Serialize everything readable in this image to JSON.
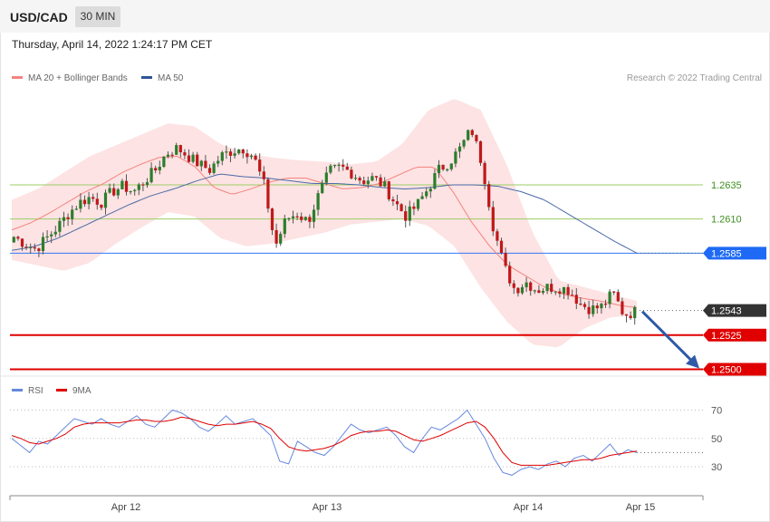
{
  "header": {
    "symbol": "USD/CAD",
    "timeframe": "30 MIN"
  },
  "datetime": "Thursday, April 14, 2022 1:24:17 PM CET",
  "legend": {
    "ma20": "MA 20 + Bollinger Bands",
    "ma50": "MA 50",
    "credit": "Research © 2022 Trading Central",
    "rsi": "RSI",
    "rsi_ma": "9MA"
  },
  "colors": {
    "ma20": "#f4837d",
    "band": "#fde0e0",
    "ma50": "#4a6aa8",
    "up": "#2d7d2d",
    "down": "#c0181a",
    "rsi": "#6688dd",
    "rsi_ma": "#e00000"
  },
  "chart_data": [
    {
      "type": "candlestick",
      "title": "USD/CAD 30 MIN",
      "x_ticks": [
        "Apr 12",
        "Apr 13",
        "Apr 14",
        "Apr 15"
      ],
      "ylim": [
        1.2493,
        1.2704
      ],
      "series": [
        {
          "name": "MA 20 + Bollinger Bands",
          "type": "band"
        },
        {
          "name": "MA 50",
          "type": "line"
        }
      ],
      "levels": [
        {
          "label": "1.2635",
          "value": 1.2635,
          "color": "#9ccc65"
        },
        {
          "label": "1.2610",
          "value": 1.261,
          "color": "#9ccc65"
        },
        {
          "label": "1.2585",
          "value": 1.2585,
          "color": "#1e6af5"
        },
        {
          "label": "1.2543",
          "value": 1.2543,
          "color": "#333333"
        },
        {
          "label": "1.2525",
          "value": 1.2525,
          "color": "#e00000"
        },
        {
          "label": "1.2500",
          "value": 1.25,
          "color": "#e00000"
        }
      ],
      "close_profile": [
        [
          1.2595,
          1.2597
        ],
        [
          1.2587,
          1.2592
        ],
        [
          1.2582,
          1.2588
        ],
        [
          1.259,
          1.2596
        ],
        [
          1.2598,
          1.2604
        ],
        [
          1.2608,
          1.2614
        ],
        [
          1.2615,
          1.2622
        ],
        [
          1.262,
          1.2626
        ],
        [
          1.2616,
          1.2622
        ],
        [
          1.2622,
          1.263
        ],
        [
          1.2628,
          1.2634
        ],
        [
          1.2624,
          1.263
        ],
        [
          1.2632,
          1.2638
        ],
        [
          1.2638,
          1.2646
        ],
        [
          1.265,
          1.2658
        ],
        [
          1.2656,
          1.2662
        ],
        [
          1.265,
          1.2656
        ],
        [
          1.2645,
          1.265
        ],
        [
          1.2642,
          1.2646
        ],
        [
          1.2648,
          1.2656
        ],
        [
          1.2655,
          1.266
        ],
        [
          1.2658,
          1.2662
        ],
        [
          1.2652,
          1.2656
        ],
        [
          1.264,
          1.2634
        ],
        [
          1.2608,
          1.259
        ],
        [
          1.2604,
          1.261
        ],
        [
          1.261,
          1.2614
        ],
        [
          1.2606,
          1.2608
        ],
        [
          1.2614,
          1.2628
        ],
        [
          1.2632,
          1.2645
        ],
        [
          1.2644,
          1.2648
        ],
        [
          1.2642,
          1.2644
        ],
        [
          1.264,
          1.2638
        ],
        [
          1.2642,
          1.264
        ],
        [
          1.2636,
          1.2634
        ],
        [
          1.263,
          1.2622
        ],
        [
          1.262,
          1.2612
        ],
        [
          1.2616,
          1.262
        ],
        [
          1.2622,
          1.2632
        ],
        [
          1.264,
          1.2646
        ],
        [
          1.2648,
          1.2652
        ],
        [
          1.2656,
          1.2662
        ],
        [
          1.267,
          1.2676
        ],
        [
          1.2666,
          1.265
        ],
        [
          1.263,
          1.2605
        ],
        [
          1.259,
          1.2575
        ],
        [
          1.2565,
          1.2558
        ],
        [
          1.2562,
          1.2564
        ],
        [
          1.256,
          1.2558
        ],
        [
          1.2556,
          1.256
        ],
        [
          1.2558,
          1.256
        ],
        [
          1.2562,
          1.2558
        ],
        [
          1.2554,
          1.2548
        ],
        [
          1.2546,
          1.2544
        ],
        [
          1.2548,
          1.2546
        ],
        [
          1.2552,
          1.2556
        ],
        [
          1.2546,
          1.254
        ],
        [
          1.254,
          1.2542
        ]
      ],
      "ma20_profile": [
        1.2602,
        1.2607,
        1.2614,
        1.2622,
        1.263,
        1.2636,
        1.2644,
        1.265,
        1.2655,
        1.2656,
        1.2648,
        1.2633,
        1.2628,
        1.2632,
        1.2637,
        1.264,
        1.264,
        1.2636,
        1.2632,
        1.2633,
        1.2636,
        1.2642,
        1.2648,
        1.2648,
        1.263,
        1.2608,
        1.259,
        1.2576,
        1.2568,
        1.256,
        1.2555,
        1.2552,
        1.255,
        1.2547,
        1.2545
      ],
      "ma50_profile": [
        1.2587,
        1.259,
        1.2596,
        1.2604,
        1.2612,
        1.262,
        1.2627,
        1.2632,
        1.2638,
        1.2643,
        1.2641,
        1.264,
        1.2638,
        1.2636,
        1.2636,
        1.2635,
        1.2633,
        1.2632,
        1.2633,
        1.2635,
        1.2635,
        1.2634,
        1.263,
        1.2624,
        1.2614,
        1.2604,
        1.2594,
        1.2585
      ],
      "band_upper_profile": [
        1.2624,
        1.2632,
        1.2644,
        1.2656,
        1.2664,
        1.2672,
        1.268,
        1.2678,
        1.2665,
        1.2658,
        1.2655,
        1.2653,
        1.2652,
        1.265,
        1.2652,
        1.2665,
        1.269,
        1.2698,
        1.269,
        1.265,
        1.26,
        1.2565,
        1.256,
        1.2555,
        1.255
      ],
      "band_lower_profile": [
        1.258,
        1.2576,
        1.2572,
        1.2578,
        1.2592,
        1.2604,
        1.2615,
        1.2612,
        1.2596,
        1.259,
        1.2592,
        1.2596,
        1.26,
        1.2606,
        1.2608,
        1.261,
        1.2605,
        1.259,
        1.256,
        1.2535,
        1.2518,
        1.2516,
        1.253,
        1.2538,
        1.254
      ]
    },
    {
      "type": "line",
      "title": "RSI",
      "ylim": [
        14,
        78
      ],
      "y_ticks": [
        "70",
        "50",
        "30"
      ],
      "series": [
        {
          "name": "RSI",
          "values": [
            50,
            45,
            40,
            48,
            46,
            52,
            58,
            64,
            62,
            60,
            64,
            60,
            58,
            62,
            66,
            60,
            58,
            64,
            70,
            68,
            64,
            58,
            55,
            60,
            66,
            60,
            62,
            64,
            58,
            52,
            34,
            32,
            48,
            44,
            40,
            38,
            44,
            52,
            60,
            56,
            54,
            56,
            58,
            52,
            44,
            40,
            50,
            58,
            56,
            60,
            64,
            70,
            60,
            50,
            36,
            26,
            24,
            28,
            30,
            28,
            32,
            34,
            30,
            36,
            38,
            34,
            40,
            46,
            38,
            42,
            40
          ]
        },
        {
          "name": "9MA",
          "values": [
            52,
            50,
            47,
            46,
            48,
            50,
            53,
            58,
            60,
            61,
            61,
            61,
            61,
            62,
            63,
            63,
            62,
            62,
            63,
            65,
            64,
            62,
            60,
            59,
            60,
            60,
            61,
            62,
            60,
            57,
            50,
            44,
            42,
            41,
            42,
            43,
            45,
            48,
            52,
            54,
            55,
            55,
            56,
            55,
            52,
            49,
            48,
            50,
            52,
            55,
            58,
            61,
            62,
            58,
            50,
            40,
            33,
            31,
            31,
            31,
            31,
            32,
            33,
            34,
            35,
            35,
            36,
            38,
            39,
            40,
            41
          ]
        }
      ]
    }
  ]
}
